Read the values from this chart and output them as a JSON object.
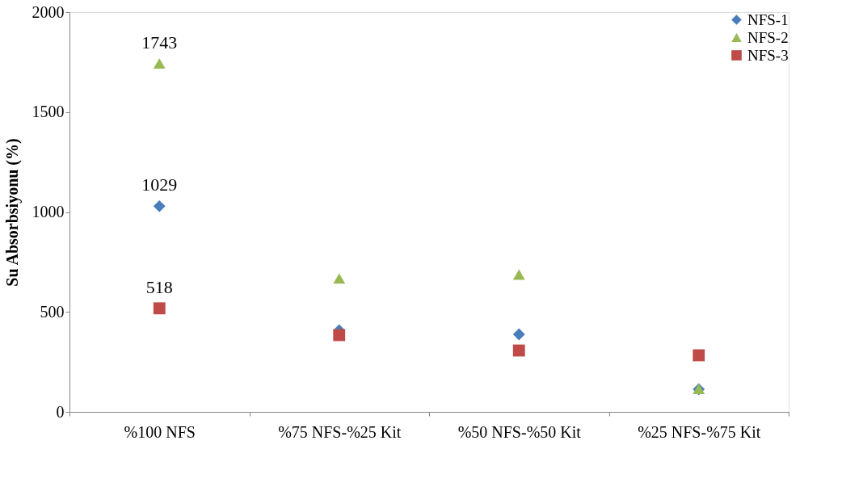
{
  "chart_data": {
    "type": "scatter",
    "ylabel": "Su Absorbsiyonu (%)",
    "categories": [
      "%100 NFS",
      "%75 NFS-%25 Kit",
      "%50 NFS-%50 Kit",
      "%25 NFS-%75 Kit"
    ],
    "series": [
      {
        "name": "NFS-1",
        "color": "#4a7ebb",
        "marker": "diamond",
        "values": [
          1029,
          408,
          388,
          113
        ],
        "value_labels": [
          "1029",
          null,
          null,
          null
        ]
      },
      {
        "name": "NFS-2",
        "color": "#98b954",
        "marker": "triangle",
        "values": [
          1743,
          667,
          687,
          115
        ],
        "value_labels": [
          "1743",
          null,
          null,
          null
        ]
      },
      {
        "name": "NFS-3",
        "color": "#be4b48",
        "marker": "square",
        "values": [
          518,
          384,
          307,
          283
        ],
        "value_labels": [
          "518",
          null,
          null,
          null
        ]
      }
    ],
    "ylim": [
      0,
      2000
    ],
    "yticks": [
      0,
      500,
      1000,
      1500,
      2000
    ],
    "grid": false,
    "legend": "top right"
  }
}
